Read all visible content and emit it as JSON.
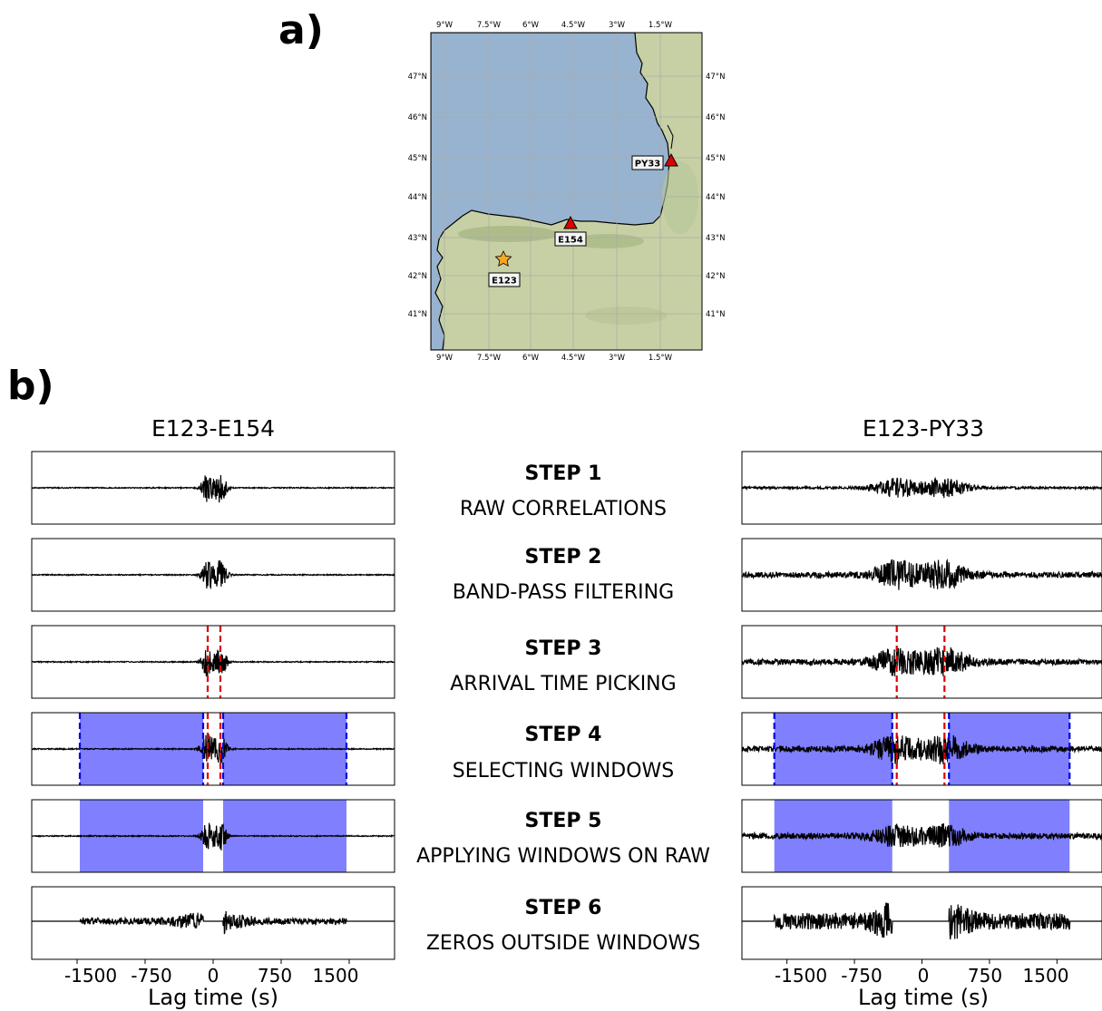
{
  "panels": {
    "a_label": "a)",
    "b_label": "b)"
  },
  "map": {
    "lon_ticks": [
      "9°W",
      "7.5°W",
      "6°W",
      "4.5°W",
      "3°W",
      "1.5°W"
    ],
    "lat_ticks": [
      "47°N",
      "46°N",
      "45°N",
      "44°N",
      "43°N",
      "42°N",
      "41°N"
    ],
    "stations": [
      {
        "code": "PY33",
        "symbol": "triangle",
        "color": "#e00000"
      },
      {
        "code": "E154",
        "symbol": "triangle",
        "color": "#e00000"
      },
      {
        "code": "E123",
        "symbol": "star",
        "color": "#f5a623"
      }
    ],
    "colors": {
      "sea": "#98b3cf",
      "land": "#c6d0a4"
    }
  },
  "columns": {
    "left_title": "E123-E154",
    "right_title": "E123-PY33"
  },
  "steps": [
    {
      "title": "STEP 1",
      "subtitle": "RAW CORRELATIONS"
    },
    {
      "title": "STEP 2",
      "subtitle": "BAND-PASS FILTERING"
    },
    {
      "title": "STEP 3",
      "subtitle": "ARRIVAL TIME PICKING"
    },
    {
      "title": "STEP 4",
      "subtitle": "SELECTING WINDOWS"
    },
    {
      "title": "STEP 5",
      "subtitle": "APPLYING WINDOWS ON RAW"
    },
    {
      "title": "STEP 6",
      "subtitle": "ZEROS OUTSIDE WINDOWS"
    }
  ],
  "axis": {
    "xlabel": "Lag time (s)",
    "tick_labels": [
      "-1500",
      "-750",
      "0",
      "750",
      "1500"
    ],
    "tick_values": [
      -1500,
      -750,
      0,
      750,
      1500
    ],
    "xlim": [
      -2000,
      2000
    ]
  },
  "chart_data": [
    {
      "type": "line",
      "pair": "E123-E154",
      "picks_s": [
        -60,
        80
      ],
      "windows_s": [
        [
          -1470,
          -110
        ],
        [
          110,
          1470
        ]
      ],
      "colors": {
        "trace": "#000000",
        "pick": "#e00000",
        "window_edge": "#0000dd",
        "window_fill": "#8080ff"
      }
    },
    {
      "type": "line",
      "pair": "E123-PY33",
      "picks_s": [
        -280,
        250
      ],
      "windows_s": [
        [
          -1640,
          -330
        ],
        [
          300,
          1640
        ]
      ],
      "colors": {
        "trace": "#000000",
        "pick": "#e00000",
        "window_edge": "#0000dd",
        "window_fill": "#8080ff"
      }
    }
  ]
}
